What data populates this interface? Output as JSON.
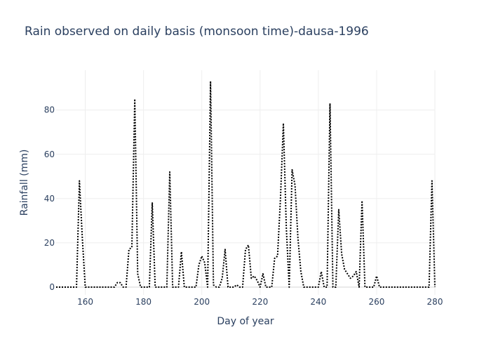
{
  "chart_data": {
    "type": "line",
    "title": "Rain observed on daily basis (monsoon time)-dausa-1996",
    "xlabel": "Day of year",
    "ylabel": "Rainfall (mm)",
    "xlim": [
      150,
      280
    ],
    "ylim": [
      -3.5,
      98
    ],
    "xticks": [
      160,
      180,
      200,
      220,
      240,
      260,
      280
    ],
    "yticks": [
      0,
      20,
      40,
      60,
      80
    ],
    "grid": true,
    "series": [
      {
        "line_style": "dotted",
        "color": "#000000",
        "x": [
          150,
          151,
          152,
          153,
          154,
          155,
          156,
          157,
          158,
          159,
          160,
          161,
          162,
          163,
          164,
          165,
          166,
          167,
          168,
          169,
          170,
          171,
          172,
          173,
          174,
          175,
          176,
          177,
          178,
          179,
          180,
          181,
          182,
          183,
          184,
          185,
          186,
          187,
          188,
          189,
          190,
          191,
          192,
          193,
          194,
          195,
          196,
          197,
          198,
          199,
          200,
          201,
          202,
          203,
          204,
          205,
          206,
          207,
          208,
          209,
          210,
          211,
          212,
          213,
          214,
          215,
          216,
          217,
          218,
          219,
          220,
          221,
          222,
          223,
          224,
          225,
          226,
          227,
          228,
          229,
          230,
          231,
          232,
          233,
          234,
          235,
          236,
          237,
          238,
          239,
          240,
          241,
          242,
          243,
          244,
          245,
          246,
          247,
          248,
          249,
          250,
          251,
          252,
          253,
          254,
          255,
          256,
          257,
          258,
          259,
          260,
          261,
          262,
          263,
          264,
          265,
          266,
          267,
          268,
          269,
          270,
          271,
          272,
          273,
          274,
          275,
          276,
          277,
          278,
          279,
          280
        ],
        "y": [
          0,
          0,
          0,
          0,
          0,
          0,
          0,
          0,
          48,
          22,
          0,
          0,
          0,
          0,
          0,
          0,
          0,
          0,
          0,
          0,
          0,
          2,
          2,
          0,
          0,
          17,
          18,
          85,
          6,
          0,
          0,
          0,
          0,
          38,
          0,
          0,
          0,
          0,
          0,
          52,
          0,
          0,
          0,
          16,
          0,
          0,
          0,
          0,
          0,
          10,
          14,
          11,
          0,
          93,
          1,
          0,
          0,
          4,
          17,
          0,
          0,
          0,
          1,
          0,
          0,
          17,
          19,
          4,
          5,
          3,
          0,
          6,
          0,
          0,
          0,
          13,
          14,
          40,
          74,
          27,
          0,
          53,
          46,
          22,
          7,
          0,
          0,
          0,
          0,
          0,
          0,
          7,
          0,
          0,
          83,
          0,
          0,
          35,
          15,
          8,
          6,
          4,
          5,
          7,
          0,
          39,
          0,
          0,
          0,
          0,
          5,
          0,
          0,
          0,
          0,
          0,
          0,
          0,
          0,
          0,
          0,
          0,
          0,
          0,
          0,
          0,
          0,
          0,
          0,
          48,
          0
        ]
      }
    ]
  }
}
